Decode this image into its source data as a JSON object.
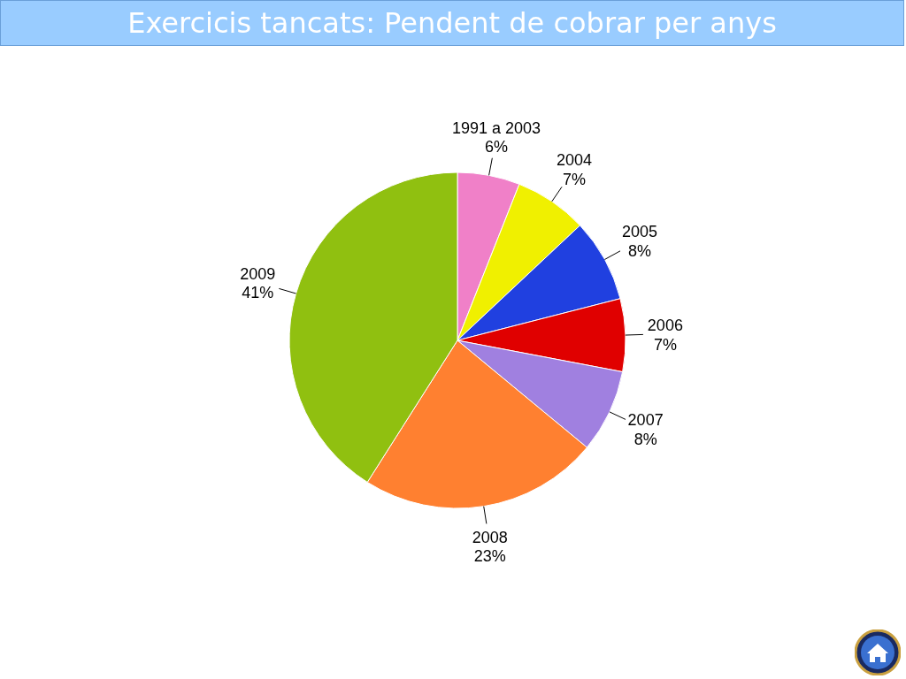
{
  "chart_data": {
    "type": "pie",
    "title": "Exercicis tancats: Pendent de cobrar per anys",
    "categories": [
      "1991 a 2003",
      "2004",
      "2005",
      "2006",
      "2007",
      "2008",
      "2009"
    ],
    "values": [
      6,
      7,
      8,
      7,
      8,
      23,
      41
    ],
    "value_labels": [
      "6%",
      "7%",
      "8%",
      "7%",
      "8%",
      "23%",
      "41%"
    ],
    "colors": [
      "#f080c8",
      "#f0f000",
      "#2040e0",
      "#e00000",
      "#a080e0",
      "#ff8030",
      "#90c010"
    ],
    "legend": false
  }
}
